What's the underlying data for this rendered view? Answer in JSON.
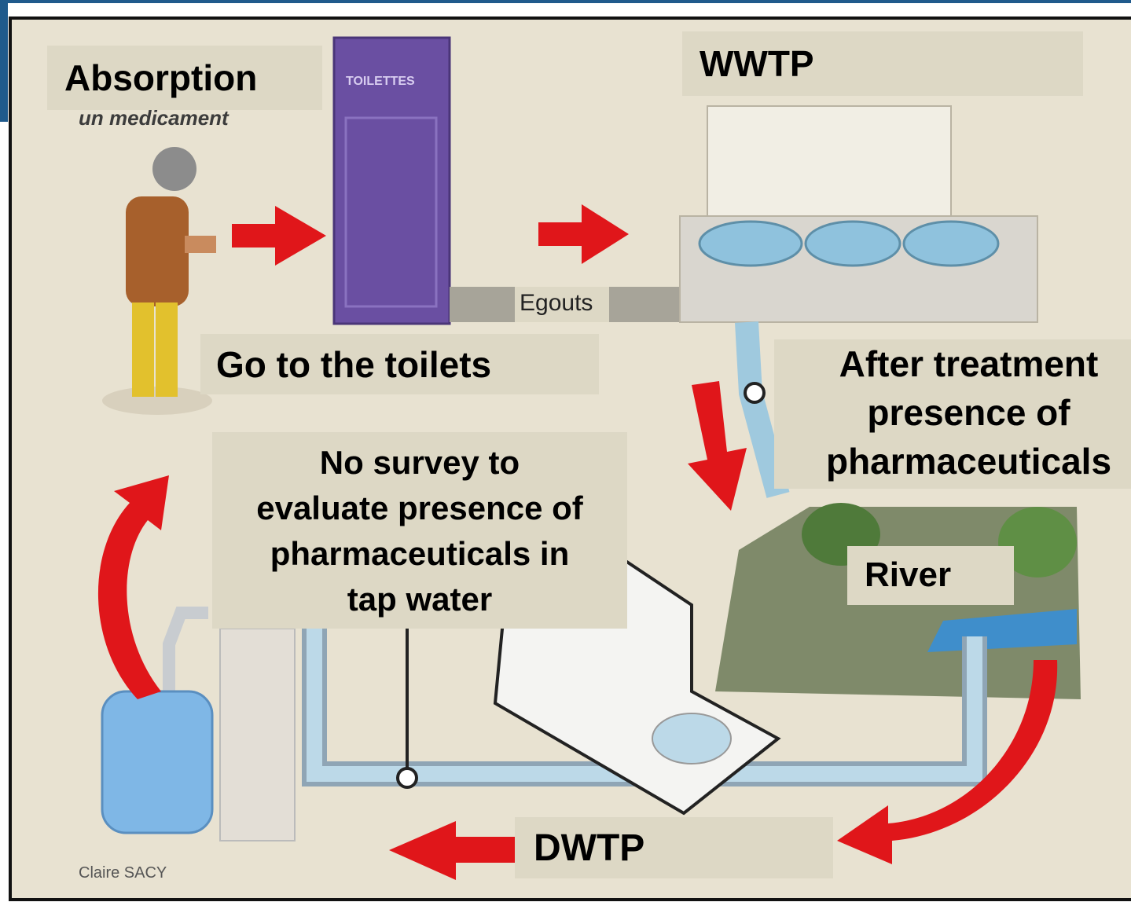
{
  "labels": {
    "absorption": "Absorption",
    "medicament": "un medicament",
    "toilets_sign": "TOILETTES",
    "sewers": "Egouts",
    "wwtp": "WWTP",
    "toilets": "Go to the toilets",
    "after_treatment": [
      "After treatment",
      "presence of",
      "pharmaceuticals"
    ],
    "no_survey": [
      "No survey to",
      "evaluate presence of",
      "pharmaceuticals in",
      "tap water"
    ],
    "river": "River",
    "dwtp": "DWTP",
    "credit": "Claire SACY"
  }
}
